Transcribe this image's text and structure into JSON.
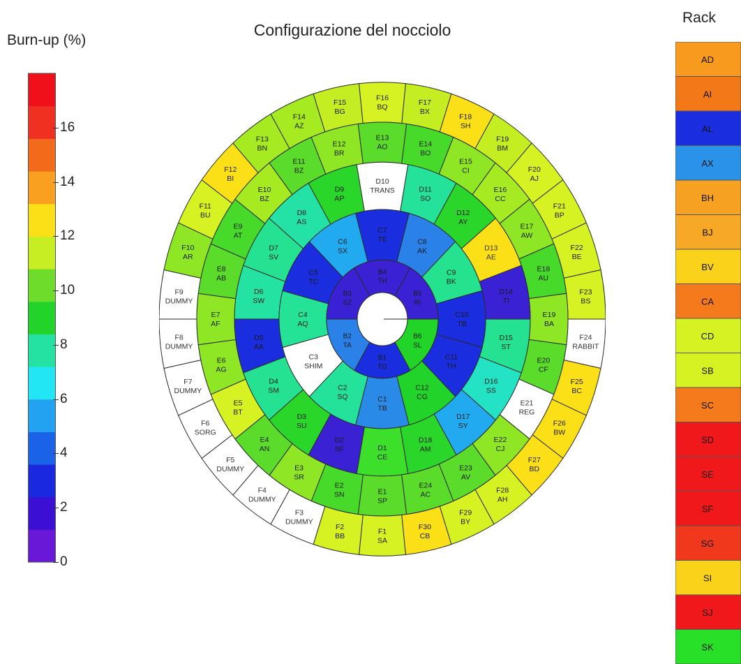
{
  "title": "Configurazione del nocciolo",
  "colorbar": {
    "title": "Burn-up (%)",
    "min": 0,
    "max": 18,
    "ticks": [
      "0",
      "2",
      "4",
      "6",
      "8",
      "10",
      "12",
      "14",
      "16"
    ]
  },
  "rack": {
    "title": "Rack",
    "items": [
      {
        "label": "AD",
        "color": "#f79a1e"
      },
      {
        "label": "AI",
        "color": "#f27818"
      },
      {
        "label": "AL",
        "color": "#1a2ee0"
      },
      {
        "label": "AX",
        "color": "#2a92e8"
      },
      {
        "label": "BH",
        "color": "#f7a122"
      },
      {
        "label": "BJ",
        "color": "#f7a826"
      },
      {
        "label": "BV",
        "color": "#fbd21a"
      },
      {
        "label": "CA",
        "color": "#f47a1c"
      },
      {
        "label": "CD",
        "color": "#d6f222"
      },
      {
        "label": "SB",
        "color": "#d6f222"
      },
      {
        "label": "SC",
        "color": "#f47a1c"
      },
      {
        "label": "SD",
        "color": "#f0181a"
      },
      {
        "label": "SE",
        "color": "#f0181a"
      },
      {
        "label": "SF",
        "color": "#f0181a"
      },
      {
        "label": "SG",
        "color": "#f0381c"
      },
      {
        "label": "SI",
        "color": "#fbd21a"
      },
      {
        "label": "SJ",
        "color": "#f0181a"
      },
      {
        "label": "SK",
        "color": "#28e028"
      }
    ]
  },
  "rings": {
    "A": [
      {
        "pos": "",
        "rack": "",
        "color": "#ffffff"
      }
    ],
    "B": [
      {
        "pos": "B1",
        "rack": "TG",
        "color": "#1a2ee0"
      },
      {
        "pos": "B2",
        "rack": "TA",
        "color": "#2a82e8"
      },
      {
        "pos": "B3",
        "rack": "SZ",
        "color": "#3a22d4"
      },
      {
        "pos": "B4",
        "rack": "TH",
        "color": "#3a22d4"
      },
      {
        "pos": "B5",
        "rack": "RI",
        "color": "#3a22d4"
      },
      {
        "pos": "B6",
        "rack": "SL",
        "color": "#22d428"
      }
    ],
    "C": [
      {
        "pos": "C1",
        "rack": "TB",
        "color": "#2a8ae8"
      },
      {
        "pos": "C2",
        "rack": "SQ",
        "color": "#24e29a"
      },
      {
        "pos": "C3",
        "rack": "SHIM",
        "color": "#ffffff",
        "textColor": "#333333"
      },
      {
        "pos": "C4",
        "rack": "AQ",
        "color": "#24e296"
      },
      {
        "pos": "C5",
        "rack": "TC",
        "color": "#1a2ee0"
      },
      {
        "pos": "C6",
        "rack": "SX",
        "color": "#22aaf0"
      },
      {
        "pos": "C7",
        "rack": "TE",
        "color": "#1a2ee0"
      },
      {
        "pos": "C8",
        "rack": "AK",
        "color": "#2a82e8"
      },
      {
        "pos": "C9",
        "rack": "BK",
        "color": "#24e28e"
      },
      {
        "pos": "C10",
        "rack": "TB",
        "color": "#1a2ee0"
      },
      {
        "pos": "C11",
        "rack": "TH",
        "color": "#1a2ee0"
      },
      {
        "pos": "C12",
        "rack": "CG",
        "color": "#22d42a"
      }
    ],
    "D": [
      {
        "pos": "D1",
        "rack": "CE",
        "color": "#3cdf2a"
      },
      {
        "pos": "D2",
        "rack": "SF",
        "color": "#3a22d4"
      },
      {
        "pos": "D3",
        "rack": "SU",
        "color": "#2bd62b"
      },
      {
        "pos": "D4",
        "rack": "SM",
        "color": "#24e292"
      },
      {
        "pos": "D5",
        "rack": "AA",
        "color": "#1a2ee0"
      },
      {
        "pos": "D6",
        "rack": "SW",
        "color": "#24e2a2"
      },
      {
        "pos": "D7",
        "rack": "SV",
        "color": "#24e292"
      },
      {
        "pos": "D8",
        "rack": "AS",
        "color": "#24e2a6"
      },
      {
        "pos": "D9",
        "rack": "AP",
        "color": "#2ad62a"
      },
      {
        "pos": "D10",
        "rack": "TRANS",
        "color": "#ffffff",
        "textColor": "#333333"
      },
      {
        "pos": "D11",
        "rack": "SO",
        "color": "#24e29a"
      },
      {
        "pos": "D12",
        "rack": "AY",
        "color": "#2bd62b"
      },
      {
        "pos": "D13",
        "rack": "AE",
        "color": "#fbe018",
        "textColor": "#333333"
      },
      {
        "pos": "D14",
        "rack": "TI",
        "color": "#3a22d4"
      },
      {
        "pos": "D15",
        "rack": "ST",
        "color": "#24e292"
      },
      {
        "pos": "D16",
        "rack": "SS",
        "color": "#24e2c4"
      },
      {
        "pos": "D17",
        "rack": "SY",
        "color": "#22aaf0"
      },
      {
        "pos": "D18",
        "rack": "AM",
        "color": "#2ad62a"
      }
    ],
    "E": [
      {
        "pos": "E1",
        "rack": "SP",
        "color": "#5cdc2a"
      },
      {
        "pos": "E2",
        "rack": "SN",
        "color": "#48da2a"
      },
      {
        "pos": "E3",
        "rack": "SR",
        "color": "#8ee624"
      },
      {
        "pos": "E4",
        "rack": "AN",
        "color": "#5cdc2a"
      },
      {
        "pos": "E5",
        "rack": "BT",
        "color": "#d6f222"
      },
      {
        "pos": "E6",
        "rack": "AG",
        "color": "#8ee624"
      },
      {
        "pos": "E7",
        "rack": "AF",
        "color": "#8ee624"
      },
      {
        "pos": "E8",
        "rack": "AB",
        "color": "#5cdc2a"
      },
      {
        "pos": "E9",
        "rack": "AT",
        "color": "#48da2a"
      },
      {
        "pos": "E10",
        "rack": "BZ",
        "color": "#a6ea22"
      },
      {
        "pos": "E11",
        "rack": "BZ",
        "color": "#5cdc2a"
      },
      {
        "pos": "E12",
        "rack": "BR",
        "color": "#8ee624"
      },
      {
        "pos": "E13",
        "rack": "AO",
        "color": "#5cdc2a"
      },
      {
        "pos": "E14",
        "rack": "BO",
        "color": "#48da2a"
      },
      {
        "pos": "E15",
        "rack": "CI",
        "color": "#8ee624"
      },
      {
        "pos": "E16",
        "rack": "CC",
        "color": "#a6ea22"
      },
      {
        "pos": "E17",
        "rack": "AW",
        "color": "#8ee624"
      },
      {
        "pos": "E18",
        "rack": "AU",
        "color": "#48da2a"
      },
      {
        "pos": "E19",
        "rack": "BA",
        "color": "#8ee624"
      },
      {
        "pos": "E20",
        "rack": "CF",
        "color": "#5cdc2a"
      },
      {
        "pos": "E21",
        "rack": "REG",
        "color": "#ffffff",
        "textColor": "#333333"
      },
      {
        "pos": "E22",
        "rack": "CJ",
        "color": "#8ee624"
      },
      {
        "pos": "E23",
        "rack": "AV",
        "color": "#5cdc2a"
      },
      {
        "pos": "E24",
        "rack": "AC",
        "color": "#5cdc2a"
      }
    ],
    "F": [
      {
        "pos": "F1",
        "rack": "SA",
        "color": "#d6f222"
      },
      {
        "pos": "F2",
        "rack": "BB",
        "color": "#d6f222"
      },
      {
        "pos": "F3",
        "rack": "DUMMY",
        "color": "#ffffff",
        "textColor": "#333333"
      },
      {
        "pos": "F4",
        "rack": "DUMMY",
        "color": "#ffffff",
        "textColor": "#333333"
      },
      {
        "pos": "F5",
        "rack": "DUMMY",
        "color": "#ffffff",
        "textColor": "#333333"
      },
      {
        "pos": "F6",
        "rack": "SORG",
        "color": "#ffffff",
        "textColor": "#333333"
      },
      {
        "pos": "F7",
        "rack": "DUMMY",
        "color": "#ffffff",
        "textColor": "#333333"
      },
      {
        "pos": "F8",
        "rack": "DUMMY",
        "color": "#ffffff",
        "textColor": "#333333"
      },
      {
        "pos": "F9",
        "rack": "DUMMY",
        "color": "#ffffff",
        "textColor": "#333333"
      },
      {
        "pos": "F10",
        "rack": "AR",
        "color": "#8ee624"
      },
      {
        "pos": "F11",
        "rack": "BU",
        "color": "#d6f222"
      },
      {
        "pos": "F12",
        "rack": "BI",
        "color": "#fbe018"
      },
      {
        "pos": "F13",
        "rack": "BN",
        "color": "#a6ea22"
      },
      {
        "pos": "F14",
        "rack": "AZ",
        "color": "#a6ea22"
      },
      {
        "pos": "F15",
        "rack": "BG",
        "color": "#c4ee22"
      },
      {
        "pos": "F16",
        "rack": "BQ",
        "color": "#d6f222"
      },
      {
        "pos": "F17",
        "rack": "BX",
        "color": "#c4ee22"
      },
      {
        "pos": "F18",
        "rack": "SH",
        "color": "#fbe018"
      },
      {
        "pos": "F19",
        "rack": "BM",
        "color": "#c4ee22"
      },
      {
        "pos": "F20",
        "rack": "AJ",
        "color": "#d6f222"
      },
      {
        "pos": "F21",
        "rack": "BP",
        "color": "#d6f222"
      },
      {
        "pos": "F22",
        "rack": "BE",
        "color": "#d6f222"
      },
      {
        "pos": "F23",
        "rack": "BS",
        "color": "#d6f222"
      },
      {
        "pos": "F24",
        "rack": "RABBIT",
        "color": "#ffffff",
        "textColor": "#333333"
      },
      {
        "pos": "F25",
        "rack": "BC",
        "color": "#fbe018"
      },
      {
        "pos": "F26",
        "rack": "BW",
        "color": "#fbe018"
      },
      {
        "pos": "F27",
        "rack": "BD",
        "color": "#fbe018"
      },
      {
        "pos": "F28",
        "rack": "AH",
        "color": "#d6f222"
      },
      {
        "pos": "F29",
        "rack": "BY",
        "color": "#d6f222"
      },
      {
        "pos": "F30",
        "rack": "CB",
        "color": "#fbe018"
      }
    ]
  }
}
